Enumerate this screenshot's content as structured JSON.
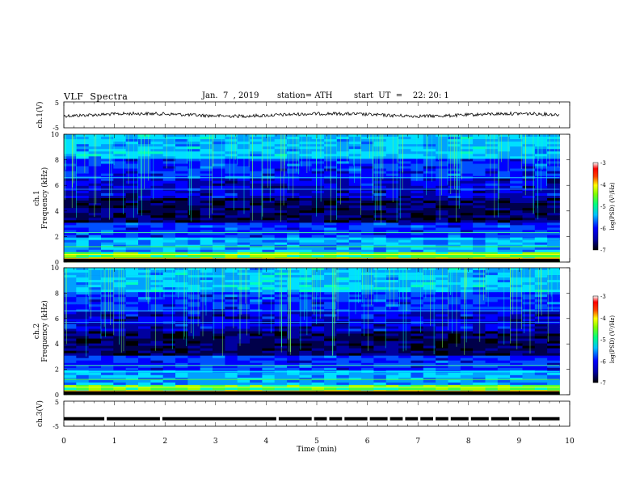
{
  "header": {
    "title": "VLF  Spectra",
    "date": "Jan.  7  , 2019",
    "station": "station= ATH",
    "start": "start  UT  =    22: 20: 1"
  },
  "chart_data": [
    {
      "type": "line",
      "ylabel": "ch.1(V)",
      "ylim": [
        -5,
        5
      ],
      "yticks": [
        "5",
        "-5"
      ],
      "xlim": [
        0,
        10
      ],
      "description_values": {
        "baseline": 0,
        "amplitude": 0.6
      },
      "series": [
        {
          "values_summary": "noisy waveform around 0 V"
        }
      ]
    },
    {
      "type": "heatmap",
      "ylabel": "Frequency  (kHz)",
      "channel_label": "ch.1",
      "ylim": [
        0,
        10
      ],
      "yticks": [
        "0",
        "2",
        "4",
        "6",
        "8",
        "10"
      ],
      "xlim": [
        0,
        10
      ],
      "colorbar": {
        "label": "log(PSD) (V²/Hz)",
        "range": [
          -7,
          -3
        ],
        "ticks": [
          "-3",
          "-4",
          "-5",
          "-6",
          "-7"
        ]
      }
    },
    {
      "type": "heatmap",
      "ylabel": "Frequency  (kHz)",
      "channel_label": "ch.2",
      "ylim": [
        0,
        10
      ],
      "yticks": [
        "0",
        "2",
        "4",
        "6",
        "8",
        "10"
      ],
      "xlim": [
        0,
        10
      ],
      "colorbar": {
        "label": "log(PSD) (V²/Hz)",
        "range": [
          -7,
          -3
        ],
        "ticks": [
          "-3",
          "-4",
          "-5",
          "-6",
          "-7"
        ]
      }
    },
    {
      "type": "line",
      "ylabel": "ch.3(V)",
      "ylim": [
        -5,
        5
      ],
      "yticks": [
        "5",
        "-5"
      ],
      "xlim": [
        0,
        10
      ],
      "series": [
        {
          "values_summary": "flat signal near -2 V with periodic gaps"
        }
      ]
    }
  ],
  "xaxis": {
    "label": "Time  (min)",
    "ticks": [
      "0",
      "1",
      "2",
      "3",
      "4",
      "5",
      "6",
      "7",
      "8",
      "9",
      "10"
    ]
  },
  "colors": {
    "background": "#000033",
    "palette": [
      "#000040",
      "#0000ff",
      "#00a0ff",
      "#00ffff",
      "#00ff80",
      "#80ff00",
      "#ffff00",
      "#ff8000",
      "#ff0000",
      "#ffffff"
    ]
  }
}
